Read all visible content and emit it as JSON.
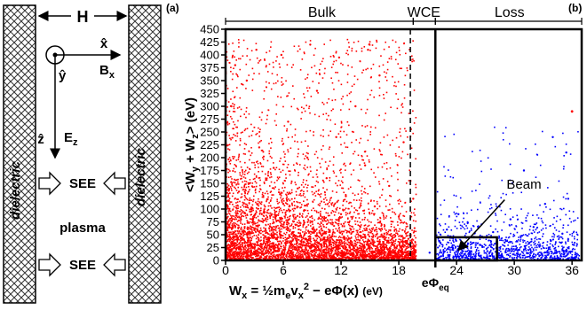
{
  "panel_a": {
    "panel_label": "(a)",
    "gap_label": "H",
    "x_unit_label": "x̂",
    "y_unit_label": "ŷ",
    "z_unit_label": "ẑ",
    "b_label": "B",
    "b_sub": "x",
    "e_label": "E",
    "e_sub": "z",
    "dielectric_label": "dielectric",
    "see_label": "SEE",
    "plasma_label": "plasma"
  },
  "panel_b": {
    "panel_label": "(b)",
    "region_bulk": "Bulk",
    "region_wce": "WCE",
    "region_loss": "Loss",
    "beam_label": "Beam",
    "ylabel": "<W_y + W_z> (eV)",
    "xlabel": "W_x = ½ m_e v_x^2 − eΦ(x) (eV)",
    "phi_label": "eΦ_eq"
  },
  "chart_data": {
    "type": "scatter",
    "title": "",
    "xlabel": "W_x = ½ m_e v_x^2 − eΦ(x) (eV)",
    "ylabel": "<W_y + W_z> (eV)",
    "xlim": [
      0,
      37
    ],
    "ylim": [
      0,
      450
    ],
    "xticks": [
      0,
      6,
      12,
      18,
      24,
      30,
      36
    ],
    "yticks": [
      0,
      25,
      50,
      75,
      100,
      125,
      150,
      175,
      200,
      225,
      250,
      275,
      300,
      325,
      350,
      375,
      400,
      425,
      450
    ],
    "grid": false,
    "legend": "none",
    "series": [
      {
        "color": "#ff0000",
        "description_of_spread": "dense cloud at low W_x and low energy, thinning out to the right and upward; extends up to W_x about 20",
        "points": [
          [
            0.4,
            20
          ],
          [
            0.8,
            45
          ],
          [
            1.2,
            12
          ],
          [
            1.6,
            80
          ],
          [
            2.0,
            35
          ],
          [
            2.5,
            150
          ],
          [
            3.0,
            60
          ],
          [
            3.5,
            220
          ],
          [
            4.0,
            95
          ],
          [
            4.5,
            40
          ],
          [
            5.0,
            180
          ],
          [
            5.5,
            18
          ],
          [
            6.0,
            110
          ],
          [
            6.5,
            270
          ],
          [
            7.0,
            55
          ],
          [
            7.5,
            140
          ],
          [
            8.0,
            30
          ],
          [
            8.5,
            200
          ],
          [
            9.0,
            75
          ],
          [
            9.5,
            330
          ],
          [
            10.0,
            48
          ],
          [
            10.5,
            160
          ],
          [
            11.0,
            22
          ],
          [
            11.5,
            240
          ],
          [
            12.0,
            90
          ],
          [
            12.5,
            125
          ],
          [
            13.0,
            38
          ],
          [
            13.5,
            300
          ],
          [
            14.0,
            65
          ],
          [
            14.5,
            185
          ],
          [
            15.0,
            28
          ],
          [
            15.5,
            105
          ],
          [
            16.0,
            360
          ],
          [
            16.5,
            52
          ],
          [
            17.0,
            145
          ],
          [
            17.5,
            15
          ],
          [
            18.0,
            85
          ],
          [
            18.5,
            230
          ],
          [
            19.0,
            42
          ],
          [
            19.5,
            120
          ],
          [
            1.0,
            380
          ],
          [
            3.2,
            410
          ],
          [
            5.8,
            400
          ],
          [
            8.8,
            420
          ],
          [
            11.8,
            395
          ],
          [
            14.8,
            410
          ],
          [
            0.6,
            300
          ],
          [
            2.2,
            350
          ]
        ]
      },
      {
        "color": "#0000ff",
        "description_of_spread": "sparse cloud beyond eΦ_eq (W_x about 21), concentrated below 100 eV with a denser beam near W_x 21–28",
        "points": [
          [
            21.2,
            15
          ],
          [
            21.8,
            40
          ],
          [
            22.4,
            8
          ],
          [
            23.0,
            60
          ],
          [
            23.6,
            25
          ],
          [
            24.2,
            90
          ],
          [
            24.8,
            12
          ],
          [
            25.4,
            45
          ],
          [
            26.0,
            30
          ],
          [
            26.6,
            70
          ],
          [
            27.2,
            18
          ],
          [
            27.8,
            55
          ],
          [
            28.4,
            10
          ],
          [
            29.0,
            35
          ],
          [
            29.6,
            80
          ],
          [
            30.2,
            22
          ],
          [
            30.8,
            48
          ],
          [
            31.4,
            14
          ],
          [
            32.0,
            65
          ],
          [
            32.6,
            28
          ],
          [
            33.2,
            110
          ],
          [
            33.8,
            38
          ],
          [
            34.4,
            16
          ],
          [
            35.0,
            52
          ],
          [
            35.6,
            120
          ],
          [
            36.2,
            30
          ],
          [
            34.0,
            240
          ],
          [
            35.4,
            210
          ],
          [
            29.8,
            150
          ],
          [
            31.0,
            175
          ]
        ]
      }
    ],
    "annotations": {
      "bulk_range": [
        0,
        19.5
      ],
      "wce_range": [
        19.5,
        21.8
      ],
      "loss_range": [
        21.8,
        37
      ],
      "dashed_line_x": 19.2,
      "solid_line_x": 21.8,
      "beam_box": {
        "x": [
          21.8,
          28.2
        ],
        "y": [
          0,
          45
        ]
      },
      "highlighted_outlier": [
        36.0,
        290
      ]
    }
  }
}
